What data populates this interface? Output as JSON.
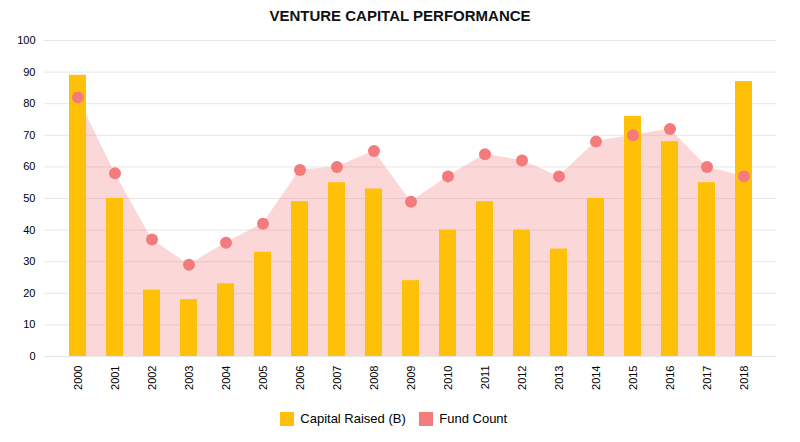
{
  "chart_data": {
    "type": "bar",
    "title": "VENTURE CAPITAL PERFORMANCE",
    "categories": [
      "2000",
      "2001",
      "2002",
      "2003",
      "2004",
      "2005",
      "2006",
      "2007",
      "2008",
      "2009",
      "2010",
      "2011",
      "2012",
      "2013",
      "2014",
      "2015",
      "2016",
      "2017",
      "2018"
    ],
    "series": [
      {
        "name": "Capital Raised (B)",
        "type": "bar",
        "color": "#FFC107",
        "values": [
          89,
          50,
          21,
          18,
          23,
          33,
          49,
          55,
          53,
          24,
          40,
          49,
          40,
          34,
          50,
          76,
          68,
          55,
          87
        ]
      },
      {
        "name": "Fund Count",
        "type": "area",
        "color": "#F47B7B",
        "marker": "circle",
        "values": [
          82,
          58,
          37,
          29,
          36,
          42,
          59,
          60,
          65,
          49,
          57,
          64,
          62,
          57,
          68,
          70,
          72,
          60,
          57
        ]
      }
    ],
    "ylim": [
      0,
      100
    ],
    "yticks": [
      0,
      10,
      20,
      30,
      40,
      50,
      60,
      70,
      80,
      90,
      100
    ],
    "grid": true,
    "legend": "bottom"
  }
}
